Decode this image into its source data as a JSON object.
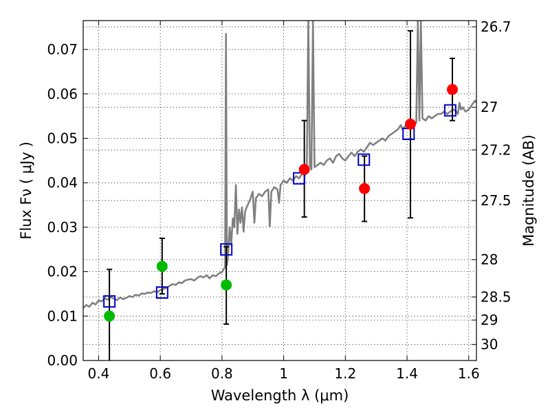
{
  "chart_data": {
    "type": "scatter",
    "title": "",
    "xlabel": "Wavelength  λ (μm)",
    "ylabel": "Flux  Fν  ( μJy )",
    "ylabel_right": "Magnitude (AB)",
    "xlim": [
      0.35,
      1.625
    ],
    "ylim": [
      0.0,
      0.0765
    ],
    "x_ticks": [
      0.4,
      0.6,
      0.8,
      1.0,
      1.2,
      1.4,
      1.6
    ],
    "x_tick_labels": [
      "0.4",
      "0.6",
      "0.8",
      "1",
      "1.2",
      "1.4",
      "1.6"
    ],
    "y_ticks": [
      0.0,
      0.01,
      0.02,
      0.03,
      0.04,
      0.05,
      0.06,
      0.07
    ],
    "y_tick_labels": [
      "0.00",
      "0.01",
      "0.02",
      "0.03",
      "0.04",
      "0.05",
      "0.06",
      "0.07"
    ],
    "right_ticks": [
      {
        "label": "26.7",
        "flux": 0.0751
      },
      {
        "label": "27",
        "flux": 0.057
      },
      {
        "label": "27.2",
        "flux": 0.0474
      },
      {
        "label": "27.5",
        "flux": 0.036
      },
      {
        "label": "28",
        "flux": 0.0227
      },
      {
        "label": "28.5",
        "flux": 0.0143
      },
      {
        "label": "29",
        "flux": 0.0091
      },
      {
        "label": "30",
        "flux": 0.0036
      }
    ],
    "grid": true,
    "colors": {
      "model": "#808080",
      "green": "#00bb00",
      "red": "#ff0000",
      "square": "#0000cc",
      "errorbar": "#000000"
    },
    "model_spectrum": [
      [
        0.35,
        0.0118
      ],
      [
        0.36,
        0.0125
      ],
      [
        0.37,
        0.0121
      ],
      [
        0.38,
        0.013
      ],
      [
        0.39,
        0.0126
      ],
      [
        0.4,
        0.0135
      ],
      [
        0.41,
        0.0133
      ],
      [
        0.42,
        0.014
      ],
      [
        0.43,
        0.0137
      ],
      [
        0.44,
        0.0143
      ],
      [
        0.45,
        0.0139
      ],
      [
        0.46,
        0.0136
      ],
      [
        0.47,
        0.0142
      ],
      [
        0.48,
        0.0138
      ],
      [
        0.49,
        0.0141
      ],
      [
        0.5,
        0.0145
      ],
      [
        0.51,
        0.0143
      ],
      [
        0.52,
        0.0148
      ],
      [
        0.53,
        0.0146
      ],
      [
        0.54,
        0.0151
      ],
      [
        0.55,
        0.015
      ],
      [
        0.56,
        0.0153
      ],
      [
        0.57,
        0.0152
      ],
      [
        0.58,
        0.0156
      ],
      [
        0.59,
        0.0154
      ],
      [
        0.6,
        0.0158
      ],
      [
        0.61,
        0.0161
      ],
      [
        0.62,
        0.0163
      ],
      [
        0.63,
        0.0168
      ],
      [
        0.64,
        0.0172
      ],
      [
        0.65,
        0.017
      ],
      [
        0.66,
        0.0176
      ],
      [
        0.67,
        0.0174
      ],
      [
        0.68,
        0.018
      ],
      [
        0.69,
        0.0182
      ],
      [
        0.7,
        0.0183
      ],
      [
        0.71,
        0.018
      ],
      [
        0.72,
        0.0186
      ],
      [
        0.73,
        0.019
      ],
      [
        0.74,
        0.0187
      ],
      [
        0.75,
        0.0192
      ],
      [
        0.76,
        0.0185
      ],
      [
        0.77,
        0.0192
      ],
      [
        0.78,
        0.019
      ],
      [
        0.79,
        0.0196
      ],
      [
        0.8,
        0.0199
      ],
      [
        0.805,
        0.0205
      ],
      [
        0.81,
        0.021
      ],
      [
        0.813,
        0.0735
      ],
      [
        0.816,
        0.0215
      ],
      [
        0.82,
        0.024
      ],
      [
        0.825,
        0.03
      ],
      [
        0.83,
        0.026
      ],
      [
        0.835,
        0.032
      ],
      [
        0.84,
        0.03
      ],
      [
        0.845,
        0.0395
      ],
      [
        0.85,
        0.0285
      ],
      [
        0.855,
        0.034
      ],
      [
        0.86,
        0.031
      ],
      [
        0.865,
        0.0345
      ],
      [
        0.87,
        0.029
      ],
      [
        0.875,
        0.0335
      ],
      [
        0.88,
        0.0345
      ],
      [
        0.89,
        0.036
      ],
      [
        0.9,
        0.038
      ],
      [
        0.905,
        0.031
      ],
      [
        0.91,
        0.0365
      ],
      [
        0.92,
        0.0375
      ],
      [
        0.93,
        0.037
      ],
      [
        0.94,
        0.038
      ],
      [
        0.95,
        0.0385
      ],
      [
        0.955,
        0.0302
      ],
      [
        0.96,
        0.038
      ],
      [
        0.97,
        0.039
      ],
      [
        0.98,
        0.0385
      ],
      [
        0.985,
        0.0355
      ],
      [
        0.99,
        0.0395
      ],
      [
        1.0,
        0.0405
      ],
      [
        1.01,
        0.04
      ],
      [
        1.02,
        0.041
      ],
      [
        1.03,
        0.0405
      ],
      [
        1.04,
        0.0415
      ],
      [
        1.05,
        0.041
      ],
      [
        1.06,
        0.042
      ],
      [
        1.07,
        0.0418
      ],
      [
        1.075,
        0.044
      ],
      [
        1.08,
        0.0765
      ],
      [
        1.085,
        0.044
      ],
      [
        1.09,
        0.043
      ],
      [
        1.095,
        0.0765
      ],
      [
        1.1,
        0.0435
      ],
      [
        1.11,
        0.044
      ],
      [
        1.12,
        0.0445
      ],
      [
        1.13,
        0.044
      ],
      [
        1.14,
        0.045
      ],
      [
        1.15,
        0.0455
      ],
      [
        1.16,
        0.0445
      ],
      [
        1.17,
        0.046
      ],
      [
        1.18,
        0.0465
      ],
      [
        1.19,
        0.0455
      ],
      [
        1.2,
        0.045
      ],
      [
        1.21,
        0.046
      ],
      [
        1.22,
        0.0468
      ],
      [
        1.23,
        0.046
      ],
      [
        1.24,
        0.047
      ],
      [
        1.25,
        0.0475
      ],
      [
        1.26,
        0.047
      ],
      [
        1.27,
        0.048
      ],
      [
        1.28,
        0.049
      ],
      [
        1.29,
        0.0485
      ],
      [
        1.3,
        0.049
      ],
      [
        1.31,
        0.0495
      ],
      [
        1.32,
        0.05
      ],
      [
        1.33,
        0.0495
      ],
      [
        1.34,
        0.0505
      ],
      [
        1.35,
        0.051
      ],
      [
        1.36,
        0.0515
      ],
      [
        1.37,
        0.052
      ],
      [
        1.38,
        0.053
      ],
      [
        1.385,
        0.052
      ],
      [
        1.39,
        0.0525
      ],
      [
        1.4,
        0.053
      ],
      [
        1.41,
        0.0528
      ],
      [
        1.42,
        0.053
      ],
      [
        1.43,
        0.0535
      ],
      [
        1.435,
        0.0765
      ],
      [
        1.44,
        0.054
      ],
      [
        1.445,
        0.0765
      ],
      [
        1.45,
        0.0545
      ],
      [
        1.46,
        0.054
      ],
      [
        1.47,
        0.055
      ],
      [
        1.48,
        0.0545
      ],
      [
        1.49,
        0.055
      ],
      [
        1.5,
        0.0555
      ],
      [
        1.51,
        0.0555
      ],
      [
        1.52,
        0.056
      ],
      [
        1.53,
        0.0555
      ],
      [
        1.54,
        0.056
      ],
      [
        1.55,
        0.0565
      ],
      [
        1.56,
        0.056
      ],
      [
        1.565,
        0.0555
      ],
      [
        1.57,
        0.058
      ],
      [
        1.575,
        0.0565
      ],
      [
        1.58,
        0.057
      ],
      [
        1.59,
        0.056
      ],
      [
        1.6,
        0.0565
      ],
      [
        1.61,
        0.0575
      ],
      [
        1.62,
        0.0585
      ],
      [
        1.625,
        0.058
      ]
    ],
    "green_points": [
      {
        "x": 0.435,
        "y": 0.01
      },
      {
        "x": 0.606,
        "y": 0.0212
      },
      {
        "x": 0.814,
        "y": 0.017
      }
    ],
    "red_points": [
      {
        "x": 1.067,
        "y": 0.043
      },
      {
        "x": 1.262,
        "y": 0.0387
      },
      {
        "x": 1.411,
        "y": 0.0532
      },
      {
        "x": 1.547,
        "y": 0.061
      }
    ],
    "squares": [
      {
        "x": 0.435,
        "y": 0.0133
      },
      {
        "x": 0.606,
        "y": 0.0153
      },
      {
        "x": 0.814,
        "y": 0.025
      },
      {
        "x": 1.05,
        "y": 0.041
      },
      {
        "x": 1.26,
        "y": 0.0452
      },
      {
        "x": 1.405,
        "y": 0.051
      },
      {
        "x": 1.54,
        "y": 0.0563
      }
    ],
    "error_bars": [
      {
        "x": 0.435,
        "low": 0.0,
        "high": 0.0205
      },
      {
        "x": 0.606,
        "low": 0.015,
        "high": 0.0275
      },
      {
        "x": 0.814,
        "low": 0.0082,
        "high": 0.0256
      },
      {
        "x": 1.067,
        "low": 0.0323,
        "high": 0.054
      },
      {
        "x": 1.262,
        "low": 0.0313,
        "high": 0.046
      },
      {
        "x": 1.411,
        "low": 0.0321,
        "high": 0.0742
      },
      {
        "x": 1.547,
        "low": 0.054,
        "high": 0.068
      }
    ]
  }
}
